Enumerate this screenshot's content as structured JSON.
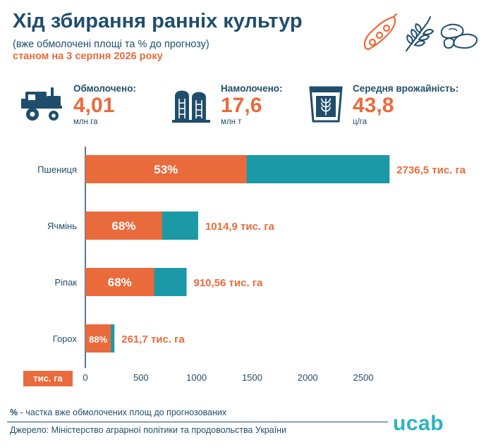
{
  "header": {
    "title": "Хід збирання ранніх культур",
    "subtitle": "(вже обмолочені площі та % до прогнозу)",
    "date": "станом на 3 серпня 2026 року"
  },
  "top_icons": [
    "soybean-pod-icon",
    "wheat-ear-icon",
    "beans-icon"
  ],
  "stats": [
    {
      "label": "Обмолочено:",
      "value": "4,01",
      "unit": "млн га",
      "icon": "combine-harvester-icon"
    },
    {
      "label": "Намолочено:",
      "value": "17,6",
      "unit": "млн т",
      "icon": "grain-silo-icon"
    },
    {
      "label": "Середня врожайність:",
      "value": "43,8",
      "unit": "ц/га",
      "icon": "grain-box-icon"
    }
  ],
  "chart_data": {
    "type": "bar",
    "orientation": "horizontal",
    "categories": [
      "Пшениця",
      "Ячмінь",
      "Ріпак",
      "Горох"
    ],
    "totals": [
      2736.5,
      1014.9,
      910.56,
      261.7
    ],
    "total_labels": [
      "2736,5 тис. га",
      "1014,9 тис. га",
      "910,56 тис. га",
      "261,7 тис. га"
    ],
    "percent_labels": [
      "53%",
      "68%",
      "68%",
      "88%"
    ],
    "percent_fractions": [
      0.53,
      0.68,
      0.68,
      0.88
    ],
    "xticks": [
      "0",
      "500",
      "1000",
      "1500",
      "2000",
      "2500"
    ],
    "xlim": [
      0,
      2800
    ],
    "unit_label": "тис. га",
    "colors": {
      "threshed": "#e96b3c",
      "remaining": "#1b99a6",
      "axis": "#1f4e6d"
    }
  },
  "footnote": {
    "mark": "%",
    "text": " - частка вже обмолочених площ до прогнозованих"
  },
  "source": "Джерело: Міністерство аграрної політики та продовольства України",
  "logo": "ucab"
}
